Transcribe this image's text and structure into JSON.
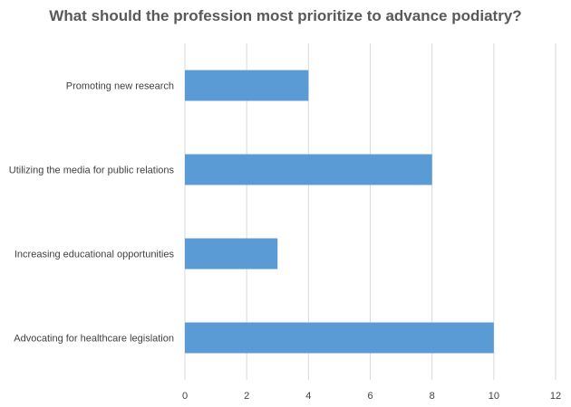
{
  "chart_data": {
    "type": "bar",
    "orientation": "horizontal",
    "title": "What should the profession most prioritize to advance podiatry?",
    "categories": [
      "Promoting new research",
      "Utilizing the media for public relations",
      "Increasing educational opportunities",
      "Advocating for healthcare legislation"
    ],
    "values": [
      4,
      8,
      3,
      10
    ],
    "xlim": [
      0,
      12
    ],
    "xticks": [
      "0",
      "2",
      "4",
      "6",
      "8",
      "10",
      "12"
    ],
    "xlabel": "",
    "ylabel": "",
    "grid": true,
    "bar_color": "#5b9bd5",
    "grid_color": "#d9d9d9"
  }
}
